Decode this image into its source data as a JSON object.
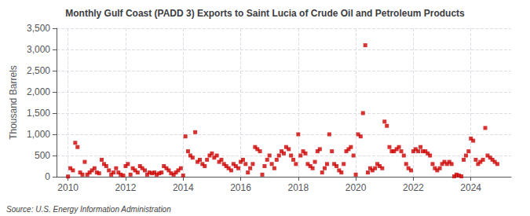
{
  "chart_data": {
    "type": "scatter",
    "title": "Monthly Gulf Coast (PADD 3) Exports to Saint Lucia of Crude Oil and Petroleum Products",
    "ylabel": "Thousand Barrels",
    "annotations": [
      "Source: U.S. Energy Information Administration"
    ],
    "color": "#cc0000",
    "marker": "square",
    "grid": true,
    "xlim": [
      2009.6,
      2025.4
    ],
    "xticks": [
      2010,
      2012,
      2014,
      2016,
      2018,
      2020,
      2022,
      2024
    ],
    "ylim": [
      0,
      3500
    ],
    "yticks": [
      0,
      500,
      {
        "value": 1000,
        "label": "1,000"
      },
      {
        "value": 1500,
        "label": "1,500"
      },
      {
        "value": 2000,
        "label": "2,000"
      },
      {
        "value": 2500,
        "label": "2,500"
      },
      {
        "value": 3000,
        "label": "3,000"
      },
      {
        "value": 3500,
        "label": "3,500"
      }
    ],
    "x": [
      2010.0,
      2010.08,
      2010.17,
      2010.25,
      2010.33,
      2010.42,
      2010.5,
      2010.58,
      2010.67,
      2010.75,
      2010.83,
      2010.92,
      2011.0,
      2011.08,
      2011.17,
      2011.25,
      2011.33,
      2011.42,
      2011.5,
      2011.58,
      2011.67,
      2011.75,
      2011.83,
      2011.92,
      2012.0,
      2012.08,
      2012.17,
      2012.25,
      2012.33,
      2012.42,
      2012.5,
      2012.58,
      2012.67,
      2012.75,
      2012.83,
      2012.92,
      2013.0,
      2013.08,
      2013.17,
      2013.25,
      2013.33,
      2013.42,
      2013.5,
      2013.58,
      2013.67,
      2013.75,
      2013.83,
      2013.92,
      2014.0,
      2014.08,
      2014.17,
      2014.25,
      2014.33,
      2014.42,
      2014.5,
      2014.58,
      2014.67,
      2014.75,
      2014.83,
      2014.92,
      2015.0,
      2015.08,
      2015.17,
      2015.25,
      2015.33,
      2015.42,
      2015.5,
      2015.58,
      2015.67,
      2015.75,
      2015.83,
      2015.92,
      2016.0,
      2016.08,
      2016.17,
      2016.25,
      2016.33,
      2016.42,
      2016.5,
      2016.58,
      2016.67,
      2016.75,
      2016.83,
      2016.92,
      2017.0,
      2017.08,
      2017.17,
      2017.25,
      2017.33,
      2017.42,
      2017.5,
      2017.58,
      2017.67,
      2017.75,
      2017.83,
      2017.92,
      2018.0,
      2018.08,
      2018.17,
      2018.25,
      2018.33,
      2018.42,
      2018.5,
      2018.58,
      2018.67,
      2018.75,
      2018.83,
      2018.92,
      2019.0,
      2019.08,
      2019.17,
      2019.25,
      2019.33,
      2019.42,
      2019.5,
      2019.58,
      2019.67,
      2019.75,
      2019.83,
      2019.92,
      2020.0,
      2020.08,
      2020.17,
      2020.25,
      2020.33,
      2020.42,
      2020.5,
      2020.58,
      2020.67,
      2020.75,
      2020.83,
      2020.92,
      2021.0,
      2021.08,
      2021.17,
      2021.25,
      2021.33,
      2021.42,
      2021.5,
      2021.58,
      2021.67,
      2021.75,
      2021.83,
      2021.92,
      2022.0,
      2022.08,
      2022.17,
      2022.25,
      2022.33,
      2022.42,
      2022.5,
      2022.58,
      2022.67,
      2022.75,
      2022.83,
      2022.92,
      2023.0,
      2023.08,
      2023.17,
      2023.25,
      2023.33,
      2023.42,
      2023.5,
      2023.58,
      2023.67,
      2023.75,
      2023.83,
      2023.92,
      2024.0,
      2024.08,
      2024.17,
      2024.25,
      2024.33,
      2024.42,
      2024.5,
      2024.58,
      2024.67,
      2024.75,
      2024.83,
      2024.92
    ],
    "values": [
      5,
      200,
      150,
      800,
      700,
      100,
      50,
      350,
      50,
      100,
      150,
      200,
      100,
      80,
      400,
      300,
      250,
      150,
      50,
      100,
      200,
      100,
      50,
      30,
      250,
      300,
      50,
      200,
      150,
      100,
      250,
      200,
      150,
      50,
      100,
      80,
      100,
      50,
      80,
      100,
      250,
      200,
      150,
      80,
      50,
      100,
      150,
      200,
      30,
      950,
      600,
      500,
      450,
      1050,
      350,
      400,
      300,
      250,
      400,
      500,
      550,
      450,
      500,
      350,
      400,
      300,
      250,
      200,
      150,
      300,
      250,
      200,
      350,
      400,
      300,
      100,
      200,
      300,
      700,
      650,
      600,
      50,
      250,
      400,
      500,
      300,
      200,
      400,
      500,
      600,
      550,
      700,
      650,
      500,
      400,
      300,
      1000,
      500,
      600,
      550,
      300,
      250,
      200,
      350,
      600,
      650,
      100,
      200,
      300,
      1000,
      600,
      300,
      250,
      150,
      100,
      300,
      600,
      650,
      700,
      500,
      50,
      1000,
      950,
      1500,
      3100,
      100,
      200,
      150,
      200,
      300,
      250,
      200,
      1300,
      1200,
      700,
      600,
      600,
      650,
      700,
      600,
      500,
      300,
      200,
      150,
      600,
      650,
      600,
      700,
      600,
      600,
      550,
      500,
      300,
      200,
      150,
      200,
      300,
      350,
      300,
      350,
      300,
      10,
      50,
      30,
      10,
      400,
      500,
      600,
      900,
      850,
      400,
      300,
      350,
      400,
      1150,
      500,
      450,
      400,
      350,
      300
    ]
  }
}
